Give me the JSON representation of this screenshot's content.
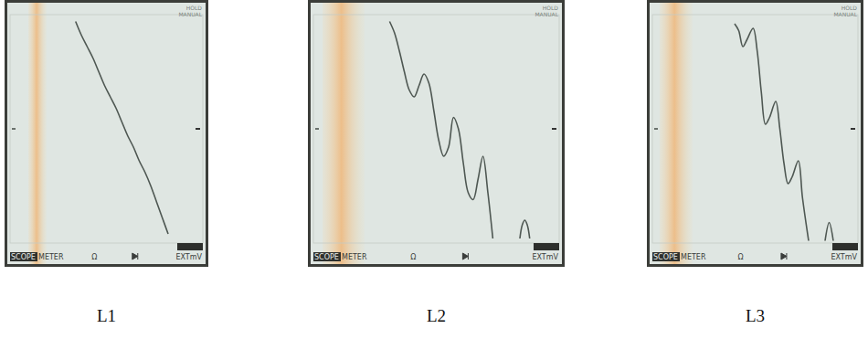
{
  "chart_data": [
    {
      "type": "line",
      "title": "L1",
      "x": [
        34,
        37,
        40,
        43,
        46,
        49,
        52,
        55,
        58,
        61,
        64,
        67,
        70,
        73,
        76,
        79,
        82
      ],
      "values": [
        97,
        91,
        86,
        81,
        75,
        69,
        64,
        59,
        53,
        47,
        42,
        36,
        31,
        25,
        18,
        11,
        4
      ],
      "xlim": [
        0,
        100
      ],
      "ylim": [
        0,
        100
      ],
      "tick_labels": false,
      "grid": false,
      "color": "#4e5752",
      "annotations": [
        "HOLD",
        "MANUAL",
        "SCOPE",
        "METER",
        "Ω",
        "EXTmV"
      ]
    },
    {
      "type": "line",
      "title": "L2",
      "x": [
        31,
        33,
        35,
        37,
        39,
        41,
        43,
        45,
        47,
        49,
        51,
        53,
        55,
        57,
        59,
        61,
        63,
        65,
        67,
        69,
        71,
        73,
        75,
        84,
        85,
        86,
        87,
        88
      ],
      "values": [
        97,
        92,
        84,
        75,
        67,
        64,
        69,
        74,
        70,
        58,
        45,
        38,
        42,
        55,
        50,
        35,
        22,
        19,
        28,
        38,
        22,
        2,
        null,
        2,
        8,
        10,
        8,
        2
      ],
      "xlim": [
        0,
        100
      ],
      "ylim": [
        0,
        100
      ],
      "tick_labels": false,
      "grid": false,
      "color": "#4e5752",
      "annotations": [
        "HOLD",
        "MANUAL",
        "SCOPE",
        "METER",
        "Ω",
        "EXTmV"
      ]
    },
    {
      "type": "line",
      "title": "L3",
      "x": [
        40,
        42,
        44,
        46,
        49,
        51,
        53,
        55,
        57,
        60,
        62,
        64,
        66,
        68,
        71,
        73,
        76,
        80,
        84,
        86,
        88
      ],
      "values": [
        96,
        93,
        86,
        89,
        94,
        84,
        66,
        52,
        55,
        62,
        50,
        35,
        26,
        29,
        36,
        20,
        1,
        null,
        1,
        9,
        1
      ],
      "xlim": [
        0,
        100
      ],
      "ylim": [
        0,
        100
      ],
      "tick_labels": false,
      "grid": false,
      "color": "#4e5752",
      "annotations": [
        "HOLD",
        "MANUAL",
        "SCOPE",
        "METER",
        "Ω",
        "EXTmV"
      ]
    }
  ]
}
